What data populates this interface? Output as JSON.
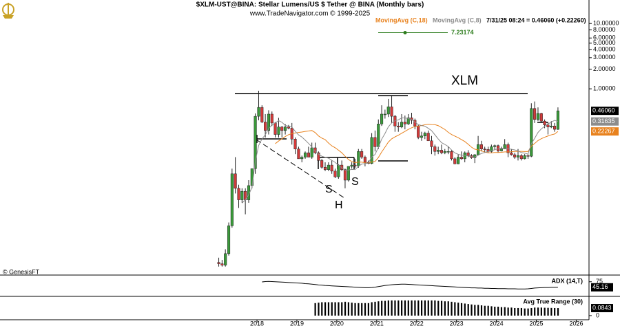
{
  "chart_data": {
    "type": "candlestick",
    "title": "$XLM-UST@BINA:  Stellar Lumens/US $ Tether @ BINA  (Monthly bars)",
    "subtitle": "www.TradeNavigator.com © 1999-2025",
    "quote": "7/31/25 08:24 = 0.46060 (+0.22260)",
    "credit": "© GenesisFT",
    "annotations": [
      "XLM",
      "S",
      "H",
      "S"
    ],
    "marker_value": 7.23174,
    "marker_color": "#2e7d1e",
    "log_scale": true,
    "xlim": [
      2011.56,
      2026.32
    ],
    "ylim": [
      0.00148,
      22.9
    ],
    "xticks": [
      2018,
      2019,
      2020,
      2021,
      2022,
      2023,
      2024,
      2025,
      2026
    ],
    "yticks": [
      {
        "value": 10,
        "label": "10.00000"
      },
      {
        "value": 8,
        "label": "8.00000"
      },
      {
        "value": 6,
        "label": "6.00000"
      },
      {
        "value": 5,
        "label": "5.00000"
      },
      {
        "value": 4,
        "label": "4.00000"
      },
      {
        "value": 3,
        "label": "3.00000"
      },
      {
        "value": 2,
        "label": "2.00000"
      },
      {
        "value": 1,
        "label": "1.00000"
      }
    ],
    "up_color": "#3a9a3a",
    "down_color": "#d23a3a",
    "close_label": "0.46060",
    "x": [
      2017.042,
      2017.125,
      2017.208,
      2017.292,
      2017.375,
      2017.458,
      2017.542,
      2017.625,
      2017.708,
      2017.792,
      2017.875,
      2017.958,
      2018.042,
      2018.125,
      2018.208,
      2018.292,
      2018.375,
      2018.458,
      2018.542,
      2018.625,
      2018.708,
      2018.792,
      2018.875,
      2018.958,
      2019.042,
      2019.125,
      2019.208,
      2019.292,
      2019.375,
      2019.458,
      2019.542,
      2019.625,
      2019.708,
      2019.792,
      2019.875,
      2019.958,
      2020.042,
      2020.125,
      2020.208,
      2020.292,
      2020.375,
      2020.458,
      2020.542,
      2020.625,
      2020.708,
      2020.792,
      2020.875,
      2020.958,
      2021.042,
      2021.125,
      2021.208,
      2021.292,
      2021.375,
      2021.458,
      2021.542,
      2021.625,
      2021.708,
      2021.792,
      2021.875,
      2021.958,
      2022.042,
      2022.125,
      2022.208,
      2022.292,
      2022.375,
      2022.458,
      2022.542,
      2022.625,
      2022.708,
      2022.792,
      2022.875,
      2022.958,
      2023.042,
      2023.125,
      2023.208,
      2023.292,
      2023.375,
      2023.458,
      2023.542,
      2023.625,
      2023.708,
      2023.792,
      2023.875,
      2023.958,
      2024.042,
      2024.125,
      2024.208,
      2024.292,
      2024.375,
      2024.458,
      2024.542,
      2024.625,
      2024.708,
      2024.792,
      2024.875,
      2024.958,
      2025.042,
      2025.125,
      2025.208,
      2025.292,
      2025.375,
      2025.458,
      2025.542
    ],
    "open": [
      0.0022,
      0.0021,
      0.002,
      0.003,
      0.008,
      0.05,
      0.03,
      0.02,
      0.027,
      0.02,
      0.033,
      0.06,
      0.38,
      0.52,
      0.31,
      0.23,
      0.41,
      0.3,
      0.2,
      0.26,
      0.23,
      0.26,
      0.25,
      0.17,
      0.12,
      0.085,
      0.09,
      0.105,
      0.09,
      0.125,
      0.105,
      0.08,
      0.063,
      0.058,
      0.068,
      0.055,
      0.045,
      0.068,
      0.058,
      0.04,
      0.065,
      0.068,
      0.066,
      0.11,
      0.09,
      0.075,
      0.072,
      0.18,
      0.13,
      0.29,
      0.41,
      0.41,
      0.53,
      0.38,
      0.27,
      0.26,
      0.31,
      0.29,
      0.36,
      0.33,
      0.27,
      0.18,
      0.19,
      0.21,
      0.16,
      0.13,
      0.11,
      0.115,
      0.105,
      0.11,
      0.11,
      0.085,
      0.071,
      0.09,
      0.085,
      0.105,
      0.095,
      0.088,
      0.098,
      0.14,
      0.12,
      0.118,
      0.11,
      0.13,
      0.135,
      0.112,
      0.12,
      0.14,
      0.105,
      0.098,
      0.09,
      0.095,
      0.085,
      0.095,
      0.093,
      0.5,
      0.34,
      0.42,
      0.32,
      0.28,
      0.26,
      0.27,
      0.24
    ],
    "high": [
      0.0026,
      0.0024,
      0.0035,
      0.009,
      0.06,
      0.09,
      0.034,
      0.03,
      0.03,
      0.04,
      0.06,
      0.42,
      0.935,
      0.56,
      0.41,
      0.47,
      0.45,
      0.31,
      0.36,
      0.27,
      0.29,
      0.28,
      0.3,
      0.18,
      0.13,
      0.095,
      0.11,
      0.13,
      0.15,
      0.15,
      0.11,
      0.085,
      0.075,
      0.075,
      0.08,
      0.06,
      0.07,
      0.08,
      0.06,
      0.065,
      0.075,
      0.085,
      0.12,
      0.12,
      0.095,
      0.08,
      0.21,
      0.23,
      0.34,
      0.56,
      0.48,
      0.7,
      0.8,
      0.4,
      0.31,
      0.41,
      0.39,
      0.41,
      0.43,
      0.35,
      0.28,
      0.22,
      0.22,
      0.23,
      0.19,
      0.14,
      0.13,
      0.14,
      0.12,
      0.13,
      0.115,
      0.09,
      0.1,
      0.11,
      0.11,
      0.115,
      0.1,
      0.1,
      0.19,
      0.16,
      0.13,
      0.13,
      0.14,
      0.14,
      0.14,
      0.13,
      0.17,
      0.15,
      0.12,
      0.105,
      0.12,
      0.1,
      0.1,
      0.1,
      0.6,
      0.64,
      0.52,
      0.43,
      0.34,
      0.3,
      0.32,
      0.3,
      0.52
    ],
    "low": [
      0.0019,
      0.0019,
      0.0019,
      0.0028,
      0.0075,
      0.025,
      0.015,
      0.018,
      0.012,
      0.018,
      0.03,
      0.05,
      0.33,
      0.3,
      0.18,
      0.2,
      0.27,
      0.18,
      0.18,
      0.18,
      0.2,
      0.24,
      0.14,
      0.1,
      0.085,
      0.075,
      0.085,
      0.09,
      0.085,
      0.1,
      0.075,
      0.06,
      0.055,
      0.055,
      0.05,
      0.043,
      0.042,
      0.055,
      0.03,
      0.038,
      0.06,
      0.062,
      0.062,
      0.085,
      0.065,
      0.07,
      0.07,
      0.11,
      0.12,
      0.27,
      0.35,
      0.37,
      0.3,
      0.22,
      0.22,
      0.25,
      0.24,
      0.28,
      0.29,
      0.24,
      0.17,
      0.16,
      0.17,
      0.16,
      0.1,
      0.095,
      0.1,
      0.1,
      0.1,
      0.1,
      0.08,
      0.07,
      0.07,
      0.082,
      0.075,
      0.09,
      0.085,
      0.073,
      0.095,
      0.11,
      0.105,
      0.105,
      0.105,
      0.115,
      0.105,
      0.11,
      0.12,
      0.09,
      0.095,
      0.085,
      0.08,
      0.08,
      0.083,
      0.085,
      0.09,
      0.3,
      0.32,
      0.3,
      0.25,
      0.2,
      0.25,
      0.22,
      0.235
    ],
    "close": [
      0.0021,
      0.002,
      0.003,
      0.008,
      0.05,
      0.03,
      0.02,
      0.027,
      0.02,
      0.033,
      0.06,
      0.38,
      0.52,
      0.31,
      0.23,
      0.41,
      0.3,
      0.2,
      0.26,
      0.23,
      0.26,
      0.25,
      0.17,
      0.12,
      0.085,
      0.09,
      0.105,
      0.09,
      0.125,
      0.105,
      0.08,
      0.063,
      0.058,
      0.068,
      0.055,
      0.045,
      0.068,
      0.058,
      0.04,
      0.065,
      0.068,
      0.066,
      0.11,
      0.09,
      0.075,
      0.072,
      0.18,
      0.13,
      0.29,
      0.41,
      0.41,
      0.53,
      0.38,
      0.27,
      0.26,
      0.31,
      0.29,
      0.36,
      0.33,
      0.27,
      0.18,
      0.19,
      0.21,
      0.16,
      0.13,
      0.11,
      0.115,
      0.105,
      0.11,
      0.11,
      0.085,
      0.071,
      0.09,
      0.085,
      0.105,
      0.095,
      0.088,
      0.098,
      0.14,
      0.12,
      0.118,
      0.11,
      0.13,
      0.135,
      0.112,
      0.12,
      0.14,
      0.105,
      0.098,
      0.09,
      0.095,
      0.085,
      0.095,
      0.093,
      0.5,
      0.34,
      0.42,
      0.32,
      0.28,
      0.26,
      0.27,
      0.24,
      0.4606
    ],
    "series": [
      {
        "name": "MovingAvg (C,18)",
        "color": "#e8821e",
        "values": [
          null,
          null,
          null,
          null,
          null,
          null,
          null,
          null,
          null,
          null,
          null,
          null,
          null,
          null,
          null,
          null,
          null,
          0.1447,
          0.159,
          0.172,
          0.186,
          0.199,
          0.206,
          0.211,
          0.215,
          0.218,
          0.223,
          0.226,
          0.23,
          0.214,
          0.19,
          0.176,
          0.167,
          0.148,
          0.134,
          0.1255,
          0.115,
          0.105,
          0.093,
          0.0828,
          0.0771,
          0.0741,
          0.0755,
          0.0755,
          0.0738,
          0.0728,
          0.0759,
          0.0773,
          0.0889,
          0.108,
          0.128,
          0.153,
          0.1715,
          0.184,
          0.195,
          0.209,
          0.223,
          0.239,
          0.2535,
          0.265,
          0.269,
          0.274,
          0.282,
          0.287,
          0.284,
          0.283,
          0.273,
          0.256,
          0.239,
          0.216,
          0.2,
          0.189,
          0.179,
          0.167,
          0.156,
          0.142,
          0.128,
          0.119,
          0.1165,
          0.1126,
          0.1075,
          0.1047,
          0.1047,
          0.1061,
          0.1059,
          0.1068,
          0.1084,
          0.1082,
          0.1089,
          0.1099,
          0.1102,
          0.1102,
          0.1097,
          0.1096,
          0.1324,
          0.1459,
          0.1614,
          0.1726,
          0.1816,
          0.1899,
          0.1977,
          0.2035,
          0.22267
        ]
      },
      {
        "name": "MovingAvg (C,8)",
        "color": "#8c8c8c",
        "values": [
          null,
          null,
          null,
          null,
          null,
          null,
          null,
          0.0178,
          0.02,
          0.0239,
          0.031,
          0.0775,
          0.136,
          0.171,
          0.198,
          0.245,
          0.28,
          0.301,
          0.326,
          0.308,
          0.275,
          0.268,
          0.26,
          0.224,
          0.197,
          0.183,
          0.164,
          0.146,
          0.129,
          0.111,
          0.1,
          0.093,
          0.0895,
          0.0868,
          0.0805,
          0.0749,
          0.0678,
          0.0619,
          0.0569,
          0.0571,
          0.0584,
          0.0581,
          0.065,
          0.0706,
          0.0715,
          0.0733,
          0.0908,
          0.0989,
          0.127,
          0.17,
          0.207,
          0.262,
          0.3,
          0.325,
          0.335,
          0.358,
          0.358,
          0.351,
          0.341,
          0.309,
          0.284,
          0.274,
          0.268,
          0.249,
          0.229,
          0.198,
          0.171,
          0.15,
          0.141,
          0.131,
          0.116,
          0.1045,
          0.0995,
          0.0964,
          0.0951,
          0.0939,
          0.0911,
          0.0896,
          0.0965,
          0.1026,
          0.1061,
          0.1093,
          0.1124,
          0.1174,
          0.1204,
          0.1231,
          0.1231,
          0.1213,
          0.1188,
          0.1163,
          0.1119,
          0.1056,
          0.1035,
          0.1001,
          0.145,
          0.1745,
          0.215,
          0.2435,
          0.267,
          0.2885,
          0.31,
          0.329,
          0.31635
        ]
      }
    ],
    "panels": [
      {
        "type": "line",
        "title": "ADX (14,T)",
        "ylim": [
          0,
          100
        ],
        "yticks": [
          75
        ],
        "series": [
          {
            "color": "#000000",
            "values": [
              null,
              null,
              null,
              null,
              null,
              null,
              null,
              null,
              null,
              null,
              null,
              null,
              null,
              74,
              76,
              77,
              76,
              75,
              74,
              73,
              72,
              71,
              70,
              69,
              68,
              67,
              65,
              64,
              62,
              60,
              58,
              57,
              55,
              54,
              53,
              52,
              51,
              50,
              49,
              48,
              47,
              46,
              45,
              44,
              43,
              43,
              44,
              46,
              49,
              52,
              55,
              57,
              59,
              60,
              61,
              62,
              62,
              61,
              60,
              59,
              58,
              57,
              56,
              55,
              54,
              53,
              52,
              51,
              50,
              49,
              48,
              47,
              46,
              45,
              44,
              43,
              42,
              42,
              41,
              41,
              40,
              40,
              39,
              39,
              38,
              38,
              38,
              37,
              37,
              37,
              36,
              36,
              36,
              37,
              39,
              41,
              42,
              43,
              44,
              44,
              45,
              45,
              45.16
            ]
          }
        ]
      },
      {
        "type": "bar",
        "title": "Avg True Range (30)",
        "ylim": [
          0,
          0.2
        ],
        "yticks": [
          0
        ],
        "series": [
          {
            "color": "#000000",
            "values": [
              null,
              null,
              null,
              null,
              null,
              null,
              null,
              null,
              null,
              null,
              null,
              null,
              null,
              null,
              null,
              null,
              null,
              null,
              null,
              null,
              null,
              null,
              null,
              null,
              null,
              null,
              null,
              null,
              null,
              0.14,
              0.145,
              0.15,
              0.15,
              0.15,
              0.15,
              0.15,
              0.15,
              0.15,
              0.155,
              0.15,
              0.145,
              0.14,
              0.14,
              0.14,
              0.14,
              0.14,
              0.15,
              0.155,
              0.16,
              0.165,
              0.165,
              0.17,
              0.17,
              0.17,
              0.17,
              0.17,
              0.17,
              0.17,
              0.17,
              0.17,
              0.17,
              0.17,
              0.17,
              0.17,
              0.17,
              0.17,
              0.165,
              0.165,
              0.16,
              0.16,
              0.155,
              0.15,
              0.145,
              0.14,
              0.135,
              0.13,
              0.125,
              0.12,
              0.12,
              0.115,
              0.11,
              0.11,
              0.105,
              0.1,
              0.1,
              0.095,
              0.095,
              0.09,
              0.09,
              0.085,
              0.085,
              0.085,
              0.08,
              0.08,
              0.085,
              0.09,
              0.09,
              0.09,
              0.088,
              0.087,
              0.086,
              0.085,
              0.0843
            ]
          }
        ]
      }
    ]
  }
}
